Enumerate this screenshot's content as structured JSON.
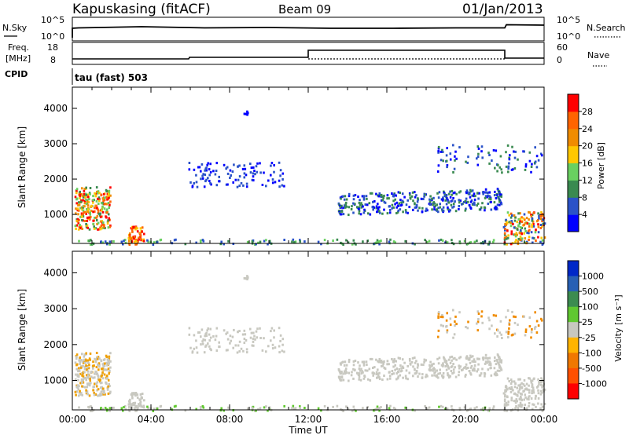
{
  "header": {
    "station": "Kapuskasing (fitACF)",
    "beam": "Beam 09",
    "date": "01/Jan/2013"
  },
  "summary_panels": {
    "nsky": {
      "left_label": "N.Sky",
      "right_label": "N.Search",
      "y_ticks_left": [
        "10^5",
        "10^0"
      ],
      "y_ticks_right": [
        "10^5",
        "10^0"
      ]
    },
    "freq": {
      "left_label_line1": "Freq.",
      "left_label_line2": "[MHz]",
      "right_label": "Nave",
      "y_ticks_left": [
        "18",
        "8"
      ],
      "y_ticks_right": [
        "60",
        "0"
      ]
    },
    "cpid": {
      "label": "CPID",
      "value_text": "tau (fast) 503"
    }
  },
  "chart_data": [
    {
      "type": "heatmap",
      "name": "power",
      "ylabel": "Slant Range [km]",
      "ylim": [
        180,
        4600
      ],
      "y_ticks": [
        1000,
        2000,
        3000,
        4000
      ],
      "xlim": [
        0,
        24
      ],
      "colorbar": {
        "label": "Power [dB]",
        "ticks": [
          4,
          8,
          12,
          16,
          20,
          24,
          28
        ],
        "colors": [
          "#0000ff",
          "#2a52c8",
          "#3a8a50",
          "#69d060",
          "#ffc800",
          "#f08c00",
          "#ff6400",
          "#ff0000"
        ]
      }
    },
    {
      "type": "heatmap",
      "name": "velocity",
      "ylabel": "Slant Range [km]",
      "ylim": [
        180,
        4600
      ],
      "y_ticks": [
        1000,
        2000,
        3000,
        4000
      ],
      "xlim": [
        0,
        24
      ],
      "colorbar": {
        "label": "Velocity [m s⁻¹]",
        "ticks": [
          "1000",
          "500",
          "100",
          "25",
          "-25",
          "-100",
          "-500",
          "-1000"
        ],
        "colors": [
          "#0028c8",
          "#2860b4",
          "#3c8c50",
          "#60c830",
          "#c8c8c0",
          "#ffb400",
          "#f07800",
          "#ff5000",
          "#ff0000"
        ]
      }
    }
  ],
  "x_axis": {
    "label": "Time UT",
    "ticks": [
      "00:00",
      "04:00",
      "08:00",
      "12:00",
      "16:00",
      "20:00",
      "00:00"
    ]
  }
}
